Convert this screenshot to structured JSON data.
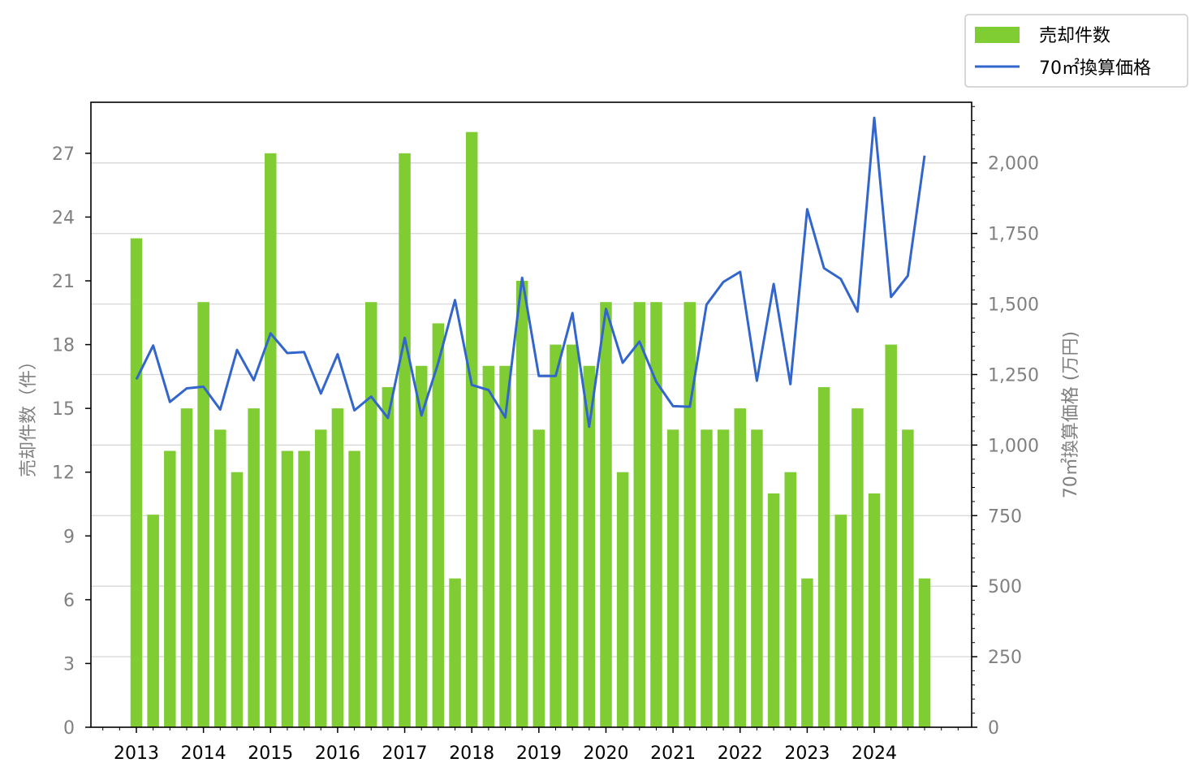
{
  "chart_data": {
    "type": "bar",
    "title": "",
    "xlabel": "",
    "ylabel": "売却件数（件）",
    "y2label": "70㎡換算価格 (万円)",
    "ylim": [
      0,
      29.4
    ],
    "y2lim": [
      0,
      2215
    ],
    "yticks": [
      "0",
      "3",
      "6",
      "9",
      "12",
      "15",
      "18",
      "21",
      "24",
      "27"
    ],
    "y2ticks": [
      "0",
      "250",
      "500",
      "750",
      "1,000",
      "1,250",
      "1,500",
      "1,750",
      "2,000"
    ],
    "y2tick_values": [
      0,
      250,
      500,
      750,
      1000,
      1250,
      1500,
      1750,
      2000
    ],
    "year_labels": [
      "2013",
      "2014",
      "2015",
      "2016",
      "2017",
      "2018",
      "2019",
      "2020",
      "2021",
      "2022",
      "2023",
      "2024"
    ],
    "grid": true,
    "legend_placement": "top-right, outside plot",
    "colors": {
      "bar": "#7fcc33",
      "line": "#3366cc",
      "tick_text": "#808080"
    },
    "series": [
      {
        "name": "売却件数",
        "type": "bar",
        "axis": "left",
        "values": [
          23,
          10,
          13,
          15,
          20,
          14,
          12,
          15,
          27,
          13,
          13,
          14,
          15,
          13,
          20,
          16,
          27,
          17,
          19,
          7,
          28,
          17,
          17,
          21,
          14,
          18,
          18,
          17,
          20,
          12,
          20,
          20,
          14,
          20,
          14,
          14,
          15,
          14,
          11,
          12,
          7,
          16,
          10,
          15,
          11,
          18,
          14,
          7
        ]
      },
      {
        "name": "70㎡換算価格",
        "type": "line",
        "axis": "right",
        "values": [
          1233,
          1353,
          1153,
          1201,
          1207,
          1126,
          1337,
          1230,
          1396,
          1326,
          1330,
          1183,
          1322,
          1123,
          1172,
          1096,
          1380,
          1105,
          1292,
          1514,
          1213,
          1195,
          1098,
          1593,
          1245,
          1245,
          1468,
          1065,
          1483,
          1292,
          1367,
          1224,
          1138,
          1136,
          1498,
          1578,
          1614,
          1228,
          1571,
          1216,
          1836,
          1627,
          1589,
          1473,
          2160,
          1525,
          1600,
          2026
        ]
      }
    ]
  }
}
